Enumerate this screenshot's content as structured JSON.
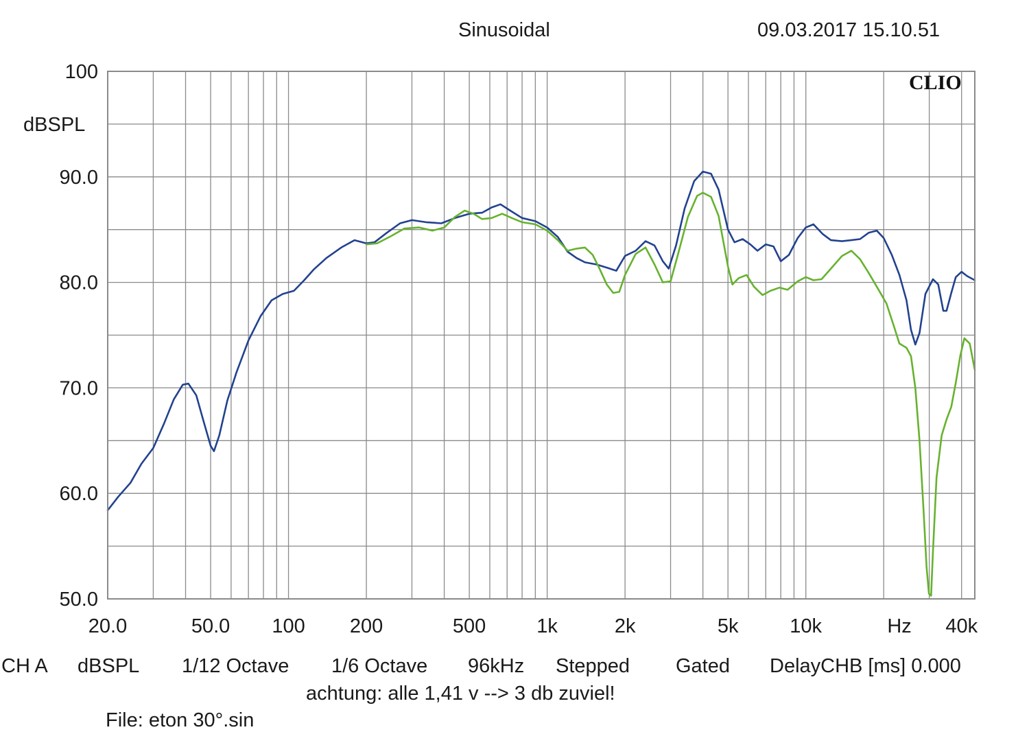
{
  "header": {
    "mode": "Sinusoidal",
    "datetime": "09.03.2017 15.10.51",
    "brand": "CLIO"
  },
  "footer": {
    "settings": [
      "CH A",
      "dBSPL",
      "1/12 Octave",
      "1/6 Octave",
      "96kHz",
      "Stepped",
      "Gated",
      "DelayCHB [ms] 0.000"
    ],
    "note": "achtung: alle 1,41 v --> 3 db zuviel!",
    "file": "File: eton 30°.sin"
  },
  "colors": {
    "series_a": "#22428f",
    "series_b": "#66b22e",
    "grid": "#8a8a8a",
    "frame": "#8a8a8a"
  },
  "chart_data": {
    "type": "line",
    "xscale": "log",
    "xlim": [
      20,
      45000
    ],
    "ylim": [
      50,
      100
    ],
    "ylabel": "dBSPL",
    "grid": true,
    "x_ticks": [
      {
        "value": 20,
        "label": "20.0"
      },
      {
        "value": 50,
        "label": "50.0"
      },
      {
        "value": 100,
        "label": "100"
      },
      {
        "value": 200,
        "label": "200"
      },
      {
        "value": 500,
        "label": "500"
      },
      {
        "value": 1000,
        "label": "1k"
      },
      {
        "value": 2000,
        "label": "2k"
      },
      {
        "value": 5000,
        "label": "5k"
      },
      {
        "value": 10000,
        "label": "10k"
      },
      {
        "value": 23000,
        "label": "Hz"
      },
      {
        "value": 40000,
        "label": "40k"
      }
    ],
    "y_ticks": [
      {
        "value": 100,
        "label": "100"
      },
      {
        "value": 90,
        "label": "90.0"
      },
      {
        "value": 80,
        "label": "80.0"
      },
      {
        "value": 70,
        "label": "70.0"
      },
      {
        "value": 60,
        "label": "60.0"
      },
      {
        "value": 50,
        "label": "50.0"
      }
    ],
    "series": [
      {
        "color": "#22428f",
        "points": [
          [
            20,
            58.4
          ],
          [
            22,
            59.7
          ],
          [
            24.5,
            61.0
          ],
          [
            27,
            62.8
          ],
          [
            30,
            64.3
          ],
          [
            33,
            66.6
          ],
          [
            36,
            68.9
          ],
          [
            39,
            70.3
          ],
          [
            41,
            70.4
          ],
          [
            44,
            69.3
          ],
          [
            47,
            66.8
          ],
          [
            50,
            64.5
          ],
          [
            51.5,
            64.0
          ],
          [
            54,
            65.5
          ],
          [
            58,
            68.8
          ],
          [
            63,
            71.5
          ],
          [
            70,
            74.5
          ],
          [
            78,
            76.8
          ],
          [
            86,
            78.3
          ],
          [
            95,
            78.9
          ],
          [
            105,
            79.2
          ],
          [
            115,
            80.2
          ],
          [
            125,
            81.2
          ],
          [
            140,
            82.3
          ],
          [
            160,
            83.3
          ],
          [
            180,
            84.0
          ],
          [
            200,
            83.7
          ],
          [
            215,
            83.8
          ],
          [
            240,
            84.7
          ],
          [
            270,
            85.6
          ],
          [
            300,
            85.9
          ],
          [
            340,
            85.7
          ],
          [
            390,
            85.6
          ],
          [
            440,
            86.1
          ],
          [
            500,
            86.5
          ],
          [
            560,
            86.6
          ],
          [
            610,
            87.1
          ],
          [
            660,
            87.4
          ],
          [
            720,
            86.8
          ],
          [
            800,
            86.1
          ],
          [
            900,
            85.8
          ],
          [
            1000,
            85.2
          ],
          [
            1100,
            84.3
          ],
          [
            1200,
            82.9
          ],
          [
            1300,
            82.3
          ],
          [
            1400,
            81.9
          ],
          [
            1550,
            81.7
          ],
          [
            1700,
            81.4
          ],
          [
            1850,
            81.1
          ],
          [
            2000,
            82.5
          ],
          [
            2200,
            83.0
          ],
          [
            2400,
            83.9
          ],
          [
            2600,
            83.5
          ],
          [
            2800,
            82.0
          ],
          [
            2950,
            81.3
          ],
          [
            3150,
            83.5
          ],
          [
            3400,
            87.0
          ],
          [
            3700,
            89.6
          ],
          [
            4000,
            90.5
          ],
          [
            4300,
            90.3
          ],
          [
            4600,
            88.8
          ],
          [
            5000,
            85.0
          ],
          [
            5300,
            83.8
          ],
          [
            5700,
            84.1
          ],
          [
            6100,
            83.6
          ],
          [
            6500,
            83.0
          ],
          [
            7000,
            83.6
          ],
          [
            7500,
            83.4
          ],
          [
            8000,
            82.0
          ],
          [
            8600,
            82.6
          ],
          [
            9300,
            84.2
          ],
          [
            10000,
            85.2
          ],
          [
            10700,
            85.5
          ],
          [
            11600,
            84.6
          ],
          [
            12500,
            84.0
          ],
          [
            13800,
            83.9
          ],
          [
            15000,
            84.0
          ],
          [
            16200,
            84.1
          ],
          [
            17500,
            84.7
          ],
          [
            18800,
            84.9
          ],
          [
            20000,
            84.2
          ],
          [
            21500,
            82.6
          ],
          [
            23000,
            80.7
          ],
          [
            24500,
            78.3
          ],
          [
            25500,
            75.5
          ],
          [
            26500,
            74.1
          ],
          [
            27500,
            75.2
          ],
          [
            29000,
            78.9
          ],
          [
            31000,
            80.3
          ],
          [
            32500,
            79.8
          ],
          [
            34000,
            77.3
          ],
          [
            35000,
            77.3
          ],
          [
            36500,
            79.0
          ],
          [
            38000,
            80.5
          ],
          [
            40000,
            81.0
          ],
          [
            42000,
            80.6
          ],
          [
            45000,
            80.2
          ]
        ]
      },
      {
        "color": "#66b22e",
        "points": [
          [
            200,
            83.6
          ],
          [
            220,
            83.7
          ],
          [
            250,
            84.4
          ],
          [
            280,
            85.1
          ],
          [
            320,
            85.2
          ],
          [
            360,
            84.9
          ],
          [
            400,
            85.2
          ],
          [
            440,
            86.2
          ],
          [
            480,
            86.8
          ],
          [
            520,
            86.5
          ],
          [
            560,
            86.0
          ],
          [
            610,
            86.1
          ],
          [
            670,
            86.5
          ],
          [
            730,
            86.1
          ],
          [
            800,
            85.7
          ],
          [
            900,
            85.5
          ],
          [
            1000,
            84.9
          ],
          [
            1100,
            84.0
          ],
          [
            1200,
            83.0
          ],
          [
            1300,
            83.2
          ],
          [
            1400,
            83.3
          ],
          [
            1500,
            82.6
          ],
          [
            1600,
            81.2
          ],
          [
            1700,
            79.8
          ],
          [
            1800,
            79.0
          ],
          [
            1900,
            79.1
          ],
          [
            2000,
            80.7
          ],
          [
            2200,
            82.7
          ],
          [
            2400,
            83.3
          ],
          [
            2600,
            81.7
          ],
          [
            2800,
            80.0
          ],
          [
            3000,
            80.1
          ],
          [
            3200,
            82.6
          ],
          [
            3500,
            86.2
          ],
          [
            3800,
            88.2
          ],
          [
            4000,
            88.5
          ],
          [
            4300,
            88.1
          ],
          [
            4600,
            86.3
          ],
          [
            5000,
            81.5
          ],
          [
            5200,
            79.8
          ],
          [
            5500,
            80.4
          ],
          [
            5900,
            80.7
          ],
          [
            6300,
            79.6
          ],
          [
            6800,
            78.8
          ],
          [
            7300,
            79.2
          ],
          [
            7900,
            79.5
          ],
          [
            8500,
            79.3
          ],
          [
            9300,
            80.1
          ],
          [
            10000,
            80.5
          ],
          [
            10700,
            80.2
          ],
          [
            11500,
            80.3
          ],
          [
            12500,
            81.3
          ],
          [
            13800,
            82.5
          ],
          [
            15000,
            83.0
          ],
          [
            16200,
            82.2
          ],
          [
            17500,
            80.9
          ],
          [
            19000,
            79.4
          ],
          [
            20500,
            78.0
          ],
          [
            21800,
            76.0
          ],
          [
            23000,
            74.2
          ],
          [
            24500,
            73.8
          ],
          [
            25500,
            73.0
          ],
          [
            26500,
            70.0
          ],
          [
            27500,
            65.0
          ],
          [
            28500,
            58.5
          ],
          [
            29300,
            53.0
          ],
          [
            29900,
            50.5
          ],
          [
            30500,
            50.3
          ],
          [
            31000,
            54.5
          ],
          [
            32000,
            61.5
          ],
          [
            33500,
            65.5
          ],
          [
            35000,
            67.0
          ],
          [
            36500,
            68.2
          ],
          [
            38000,
            70.5
          ],
          [
            39500,
            73.0
          ],
          [
            41000,
            74.7
          ],
          [
            43000,
            74.2
          ],
          [
            45000,
            71.7
          ]
        ]
      }
    ]
  }
}
